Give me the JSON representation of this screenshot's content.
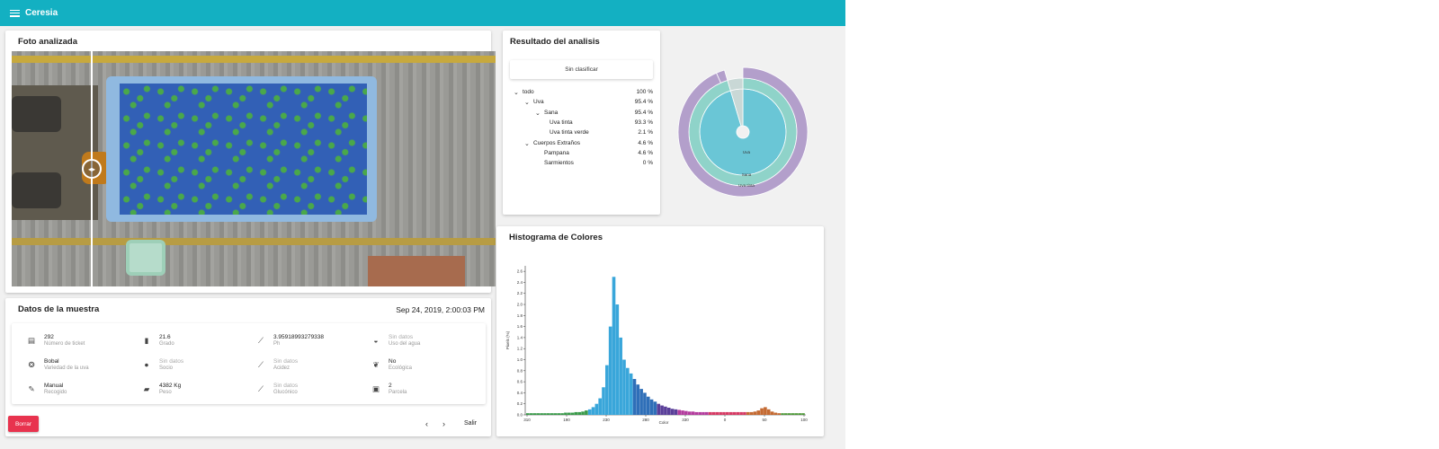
{
  "app": {
    "title": "Ceresia"
  },
  "photo_card": {
    "title": "Foto analizada"
  },
  "sample_card": {
    "title": "Datos de la muestra",
    "date": "Sep 24, 2019, 2:00:03 PM",
    "fields": [
      {
        "icon": "receipt-icon",
        "glyph": "▤",
        "value": "292",
        "label": "Número de ticket",
        "muted": false
      },
      {
        "icon": "bar-chart-icon",
        "glyph": "▮",
        "value": "21.6",
        "label": "Grado",
        "muted": false
      },
      {
        "icon": "trend-icon",
        "glyph": "⟋",
        "value": "3.95918993279338",
        "label": "Ph",
        "muted": false
      },
      {
        "icon": "water-drop-icon",
        "glyph": "◒",
        "value": "Sin datos",
        "label": "Uso del agua",
        "muted": true
      },
      {
        "icon": "grape-icon",
        "glyph": "❂",
        "value": "Bobal",
        "label": "Variedad de la uva",
        "muted": false
      },
      {
        "icon": "person-icon",
        "glyph": "●",
        "value": "Sin datos",
        "label": "Socio",
        "muted": true
      },
      {
        "icon": "trend-icon",
        "glyph": "⟋",
        "value": "Sin datos",
        "label": "Acidez",
        "muted": true
      },
      {
        "icon": "leaf-icon",
        "glyph": "❦",
        "value": "No",
        "label": "Ecológica",
        "muted": false
      },
      {
        "icon": "wrench-icon",
        "glyph": "✎",
        "value": "Manual",
        "label": "Recogido",
        "muted": false
      },
      {
        "icon": "truck-icon",
        "glyph": "▰",
        "value": "4382 Kg",
        "label": "Peso",
        "muted": false
      },
      {
        "icon": "trend-icon",
        "glyph": "⟋",
        "value": "Sin datos",
        "label": "Glucónico",
        "muted": true
      },
      {
        "icon": "photo-icon",
        "glyph": "▣",
        "value": "2",
        "label": "Parcela",
        "muted": false
      }
    ],
    "delete_label": "Borrar",
    "prev_glyph": "‹",
    "next_glyph": "›",
    "exit_label": "Salir"
  },
  "result_card": {
    "title": "Resultado del analisis",
    "unclassified_label": "Sin clasificar",
    "tree": [
      {
        "label": "todo",
        "pct": "100 %",
        "level": 0,
        "expandable": true
      },
      {
        "label": "Uva",
        "pct": "95.4 %",
        "level": 1,
        "expandable": true
      },
      {
        "label": "Sana",
        "pct": "95.4 %",
        "level": 2,
        "expandable": true
      },
      {
        "label": "Uva tinta",
        "pct": "93.3 %",
        "level": 3,
        "expandable": false
      },
      {
        "label": "Uva tinta verde",
        "pct": "2.1 %",
        "level": 3,
        "expandable": false
      },
      {
        "label": "Cuerpos Extraños",
        "pct": "4.6 %",
        "level": 1,
        "expandable": true
      },
      {
        "label": "Pampana",
        "pct": "4.6 %",
        "level": 2,
        "expandable": false
      },
      {
        "label": "Sarmientos",
        "pct": "0 %",
        "level": 2,
        "expandable": false
      }
    ],
    "sunburst_labels": {
      "inner": "Uva",
      "middle": "Sana",
      "outer": "Uva tinta"
    },
    "colors": {
      "inner": "#6ac6d6",
      "middle": "#8fd3c9",
      "outer": "#b39fcb",
      "foreign": "#c9d8d6"
    }
  },
  "histogram_card": {
    "title": "Histograma de Colores",
    "chart_data": {
      "type": "bar",
      "xlabel": "Color",
      "ylabel": "Pixels (%)",
      "ylim": [
        0,
        2.7
      ],
      "y_ticks": [
        "0.0",
        "0.2",
        "0.4",
        "0.6",
        "0.8",
        "1.0",
        "1.2",
        "1.4",
        "1.6",
        "1.8",
        "2.0",
        "2.2",
        "2.4",
        "2.6"
      ],
      "x_ticks": [
        "310",
        "190",
        "230",
        "280",
        "330",
        "0",
        "50",
        "100"
      ],
      "peak_value": 2.5,
      "series": [
        {
          "x": [
            0,
            10,
            20,
            30,
            40,
            50,
            60,
            70,
            80,
            90,
            100,
            110,
            120,
            130,
            140,
            150,
            160,
            170,
            180,
            190,
            200,
            210,
            220,
            230,
            240,
            250,
            260,
            270,
            280,
            290,
            300,
            310,
            320,
            330,
            340,
            350,
            360,
            370,
            380,
            390,
            400,
            410,
            420,
            430,
            440,
            450,
            460,
            470,
            480,
            490,
            500,
            510,
            520,
            530,
            540,
            550,
            560,
            570,
            580,
            590,
            600,
            610,
            620,
            630,
            640,
            650,
            660,
            670,
            680,
            690,
            700,
            710,
            720,
            730,
            740,
            750,
            760,
            770,
            780,
            790,
            800
          ],
          "values": [
            0.03,
            0.03,
            0.03,
            0.03,
            0.03,
            0.03,
            0.03,
            0.03,
            0.03,
            0.03,
            0.03,
            0.04,
            0.04,
            0.04,
            0.05,
            0.05,
            0.06,
            0.08,
            0.1,
            0.14,
            0.2,
            0.3,
            0.5,
            0.9,
            1.6,
            2.5,
            2.0,
            1.4,
            1.0,
            0.85,
            0.75,
            0.65,
            0.55,
            0.47,
            0.4,
            0.33,
            0.28,
            0.24,
            0.2,
            0.17,
            0.15,
            0.13,
            0.11,
            0.1,
            0.09,
            0.08,
            0.07,
            0.06,
            0.06,
            0.05,
            0.05,
            0.05,
            0.05,
            0.05,
            0.05,
            0.05,
            0.05,
            0.05,
            0.05,
            0.05,
            0.05,
            0.05,
            0.05,
            0.05,
            0.05,
            0.05,
            0.06,
            0.08,
            0.12,
            0.14,
            0.1,
            0.06,
            0.04,
            0.03,
            0.03,
            0.03,
            0.03,
            0.03,
            0.03,
            0.03,
            0.03
          ]
        }
      ]
    }
  }
}
